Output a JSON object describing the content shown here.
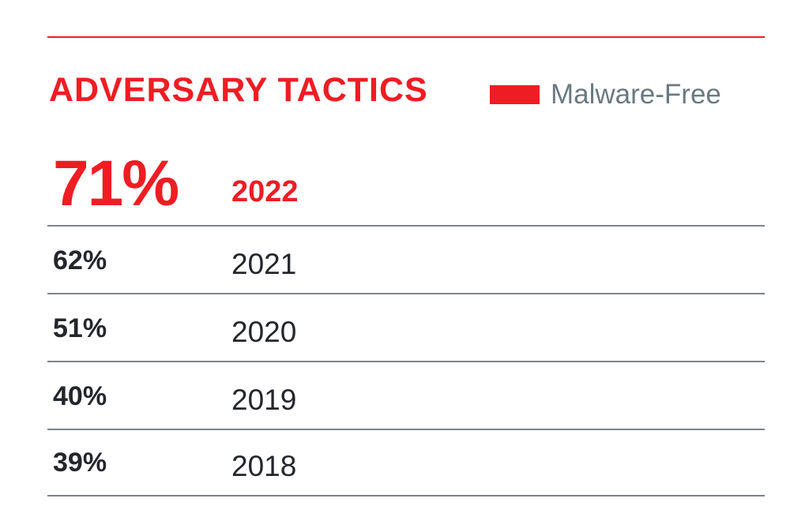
{
  "chart_data": {
    "type": "table",
    "title": "ADVERSARY TACTICS",
    "legend": [
      {
        "label": "Malware-Free",
        "color": "#ee1d23"
      }
    ],
    "legend_position": "top-right",
    "columns": [
      "value",
      "year"
    ],
    "rows": [
      {
        "value": 71,
        "value_label": "71%",
        "year": "2022",
        "highlight": true
      },
      {
        "value": 62,
        "value_label": "62%",
        "year": "2021",
        "highlight": false
      },
      {
        "value": 51,
        "value_label": "51%",
        "year": "2020",
        "highlight": false
      },
      {
        "value": 40,
        "value_label": "40%",
        "year": "2019",
        "highlight": false
      },
      {
        "value": 39,
        "value_label": "39%",
        "year": "2018",
        "highlight": false
      }
    ]
  },
  "colors": {
    "accent": "#ee1d23",
    "text": "#23262b",
    "legend_text": "#6b7a80",
    "divider": "#7c858a"
  }
}
